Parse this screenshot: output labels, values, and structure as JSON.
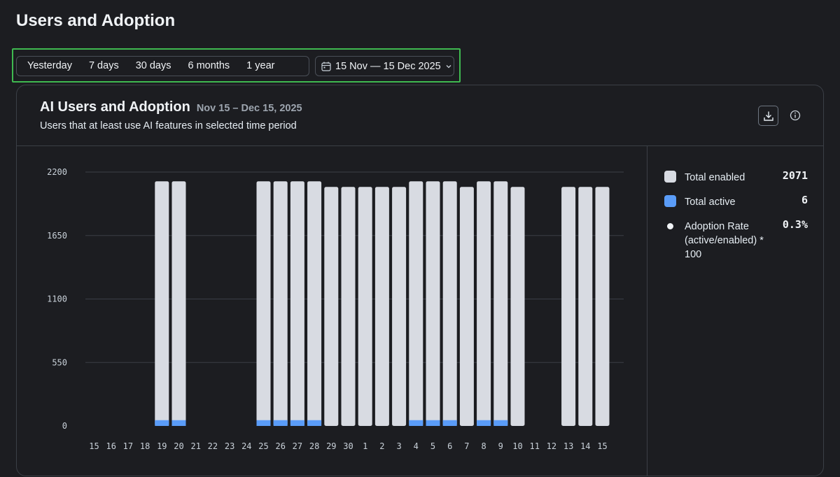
{
  "page": {
    "title": "Users and Adoption"
  },
  "range": {
    "options": [
      "Yesterday",
      "7 days",
      "30 days",
      "6 months",
      "1 year"
    ],
    "date_picker": "15 Nov — 15 Dec 2025"
  },
  "card": {
    "title": "AI Users and Adoption",
    "date_range": "Nov 15 – Dec 15, 2025",
    "subtitle": "Users that at least use AI features in selected time period"
  },
  "legend": {
    "total_enabled_label": "Total enabled",
    "total_enabled_value": "2071",
    "total_active_label": "Total active",
    "total_active_value": "6",
    "adoption_label": "Adoption Rate (active/enabled) * 100",
    "adoption_value": "0.3%"
  },
  "colors": {
    "enabled": "#d8dbe2",
    "active": "#5a9cf8",
    "accent_outline": "#3fb950"
  },
  "chart_data": {
    "type": "bar",
    "categories": [
      "15",
      "16",
      "17",
      "18",
      "19",
      "20",
      "21",
      "22",
      "23",
      "24",
      "25",
      "26",
      "27",
      "28",
      "29",
      "30",
      "1",
      "2",
      "3",
      "4",
      "5",
      "6",
      "7",
      "8",
      "9",
      "10",
      "11",
      "12",
      "13",
      "14",
      "15"
    ],
    "series": [
      {
        "name": "Total enabled",
        "values": [
          0,
          0,
          0,
          0,
          2120,
          2120,
          0,
          0,
          0,
          0,
          2120,
          2120,
          2120,
          2120,
          2071,
          2071,
          2071,
          2071,
          2071,
          2120,
          2120,
          2120,
          2071,
          2120,
          2120,
          2071,
          0,
          0,
          2071,
          2071,
          2071
        ]
      },
      {
        "name": "Total active",
        "values": [
          0,
          0,
          0,
          0,
          50,
          50,
          0,
          0,
          0,
          0,
          50,
          50,
          50,
          50,
          0,
          0,
          0,
          0,
          0,
          50,
          50,
          50,
          0,
          50,
          50,
          0,
          0,
          0,
          0,
          0,
          0
        ]
      }
    ],
    "yticks": [
      0,
      550,
      1100,
      1650,
      2200
    ],
    "ylim": [
      0,
      2200
    ],
    "stacked": true,
    "grid": true
  }
}
